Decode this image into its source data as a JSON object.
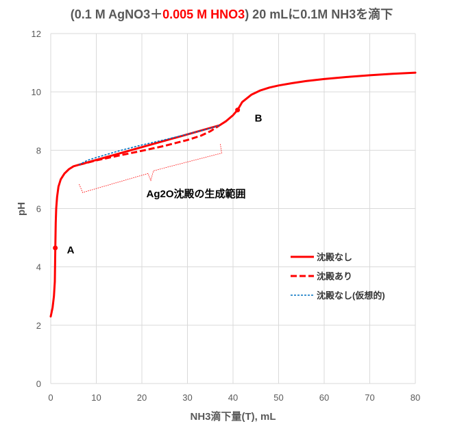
{
  "chart_data": {
    "type": "line",
    "title_parts": [
      {
        "text": "(0.1 M AgNO3＋",
        "color": "#595959"
      },
      {
        "text": "0.005 M HNO3",
        "color": "#ff0000"
      },
      {
        "text": ") 20 mLに0.1M NH3を滴下",
        "color": "#595959"
      }
    ],
    "xlabel": "NH3滴下量(T), mL",
    "ylabel": "pH",
    "xlim": [
      0,
      80
    ],
    "ylim": [
      0,
      12
    ],
    "xticks": [
      0,
      10,
      20,
      30,
      40,
      50,
      60,
      70,
      80
    ],
    "yticks": [
      0,
      2,
      4,
      6,
      8,
      10,
      12
    ],
    "grid": true,
    "legend_position": "right",
    "series": [
      {
        "name": "沈殿なし",
        "color": "#ff0000",
        "style": "solid",
        "x": [
          0,
          0.4,
          0.7,
          0.9,
          1.0,
          1.1,
          1.2,
          1.4,
          1.7,
          2.2,
          3.0,
          4.0,
          5.0,
          6.2,
          37.0,
          38.5,
          40.0,
          41.0,
          42.0,
          44.0,
          46.0,
          48.0,
          50.0,
          53.0,
          56.0,
          60.0,
          65.0,
          70.0,
          75.0,
          80.0
        ],
        "y": [
          2.3,
          2.6,
          3.0,
          3.5,
          4.65,
          5.5,
          6.0,
          6.4,
          6.75,
          7.0,
          7.2,
          7.35,
          7.45,
          7.5,
          8.85,
          9.0,
          9.2,
          9.38,
          9.65,
          9.9,
          10.05,
          10.15,
          10.22,
          10.3,
          10.37,
          10.44,
          10.51,
          10.57,
          10.62,
          10.66
        ]
      },
      {
        "name": "沈殿あり",
        "color": "#ff0000",
        "style": "dashed",
        "x": [
          6.2,
          10,
          15,
          20,
          25,
          30,
          33,
          35,
          37
        ],
        "y": [
          7.5,
          7.65,
          7.82,
          7.98,
          8.15,
          8.35,
          8.5,
          8.65,
          8.85
        ]
      },
      {
        "name": "沈殿なし(仮想的)",
        "color": "#0070c0",
        "style": "dotted",
        "x": [
          6.2,
          8,
          10,
          15,
          20,
          25,
          30,
          35,
          37
        ],
        "y": [
          7.5,
          7.65,
          7.75,
          7.98,
          8.18,
          8.36,
          8.55,
          8.75,
          8.85
        ]
      }
    ],
    "points": [
      {
        "label": "A",
        "x": 1.0,
        "y": 4.65
      },
      {
        "label": "B",
        "x": 41.0,
        "y": 9.38
      }
    ],
    "annotation": {
      "text": "Ag2O沈殿の生成範囲",
      "color": "#ff0000",
      "x_range": [
        7,
        37.5
      ]
    }
  }
}
